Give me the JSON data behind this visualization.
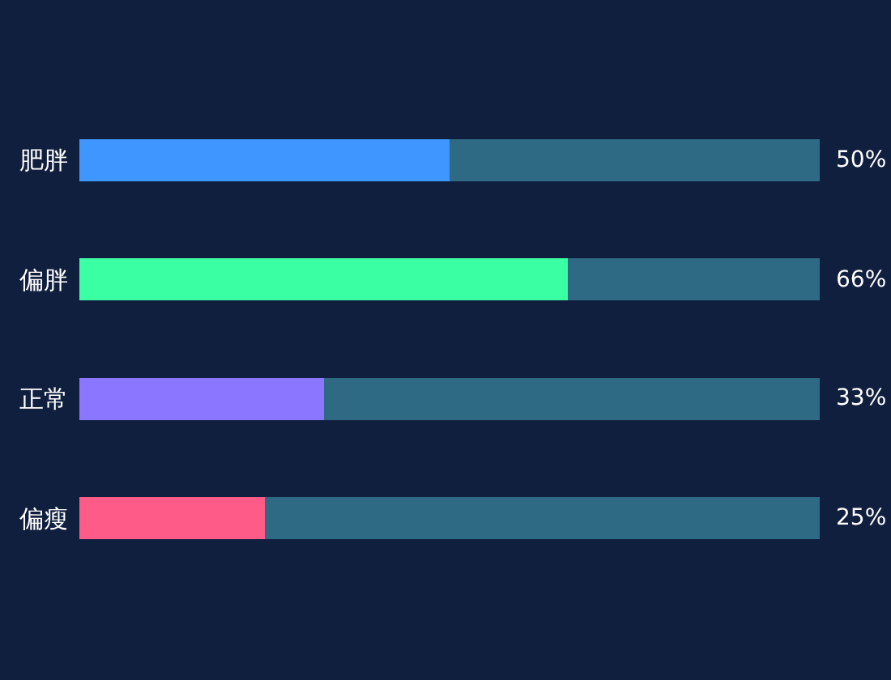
{
  "chart_data": {
    "type": "bar",
    "orientation": "horizontal",
    "stacked": true,
    "categories": [
      "肥胖",
      "偏胖",
      "正常",
      "偏瘦"
    ],
    "series": [
      {
        "colors": [
          "#3f96ff",
          "#3bffa3",
          "#8b77ff",
          "#ff5b88"
        ],
        "values": [
          50,
          66,
          33,
          25
        ],
        "value_labels": [
          "50%",
          "66%",
          "33%",
          "25%"
        ]
      },
      {
        "color": "#2e6a84",
        "values": [
          50,
          34,
          67,
          75
        ]
      }
    ],
    "xlim": [
      0,
      100
    ],
    "tick_labels": "y",
    "grid": false
  }
}
